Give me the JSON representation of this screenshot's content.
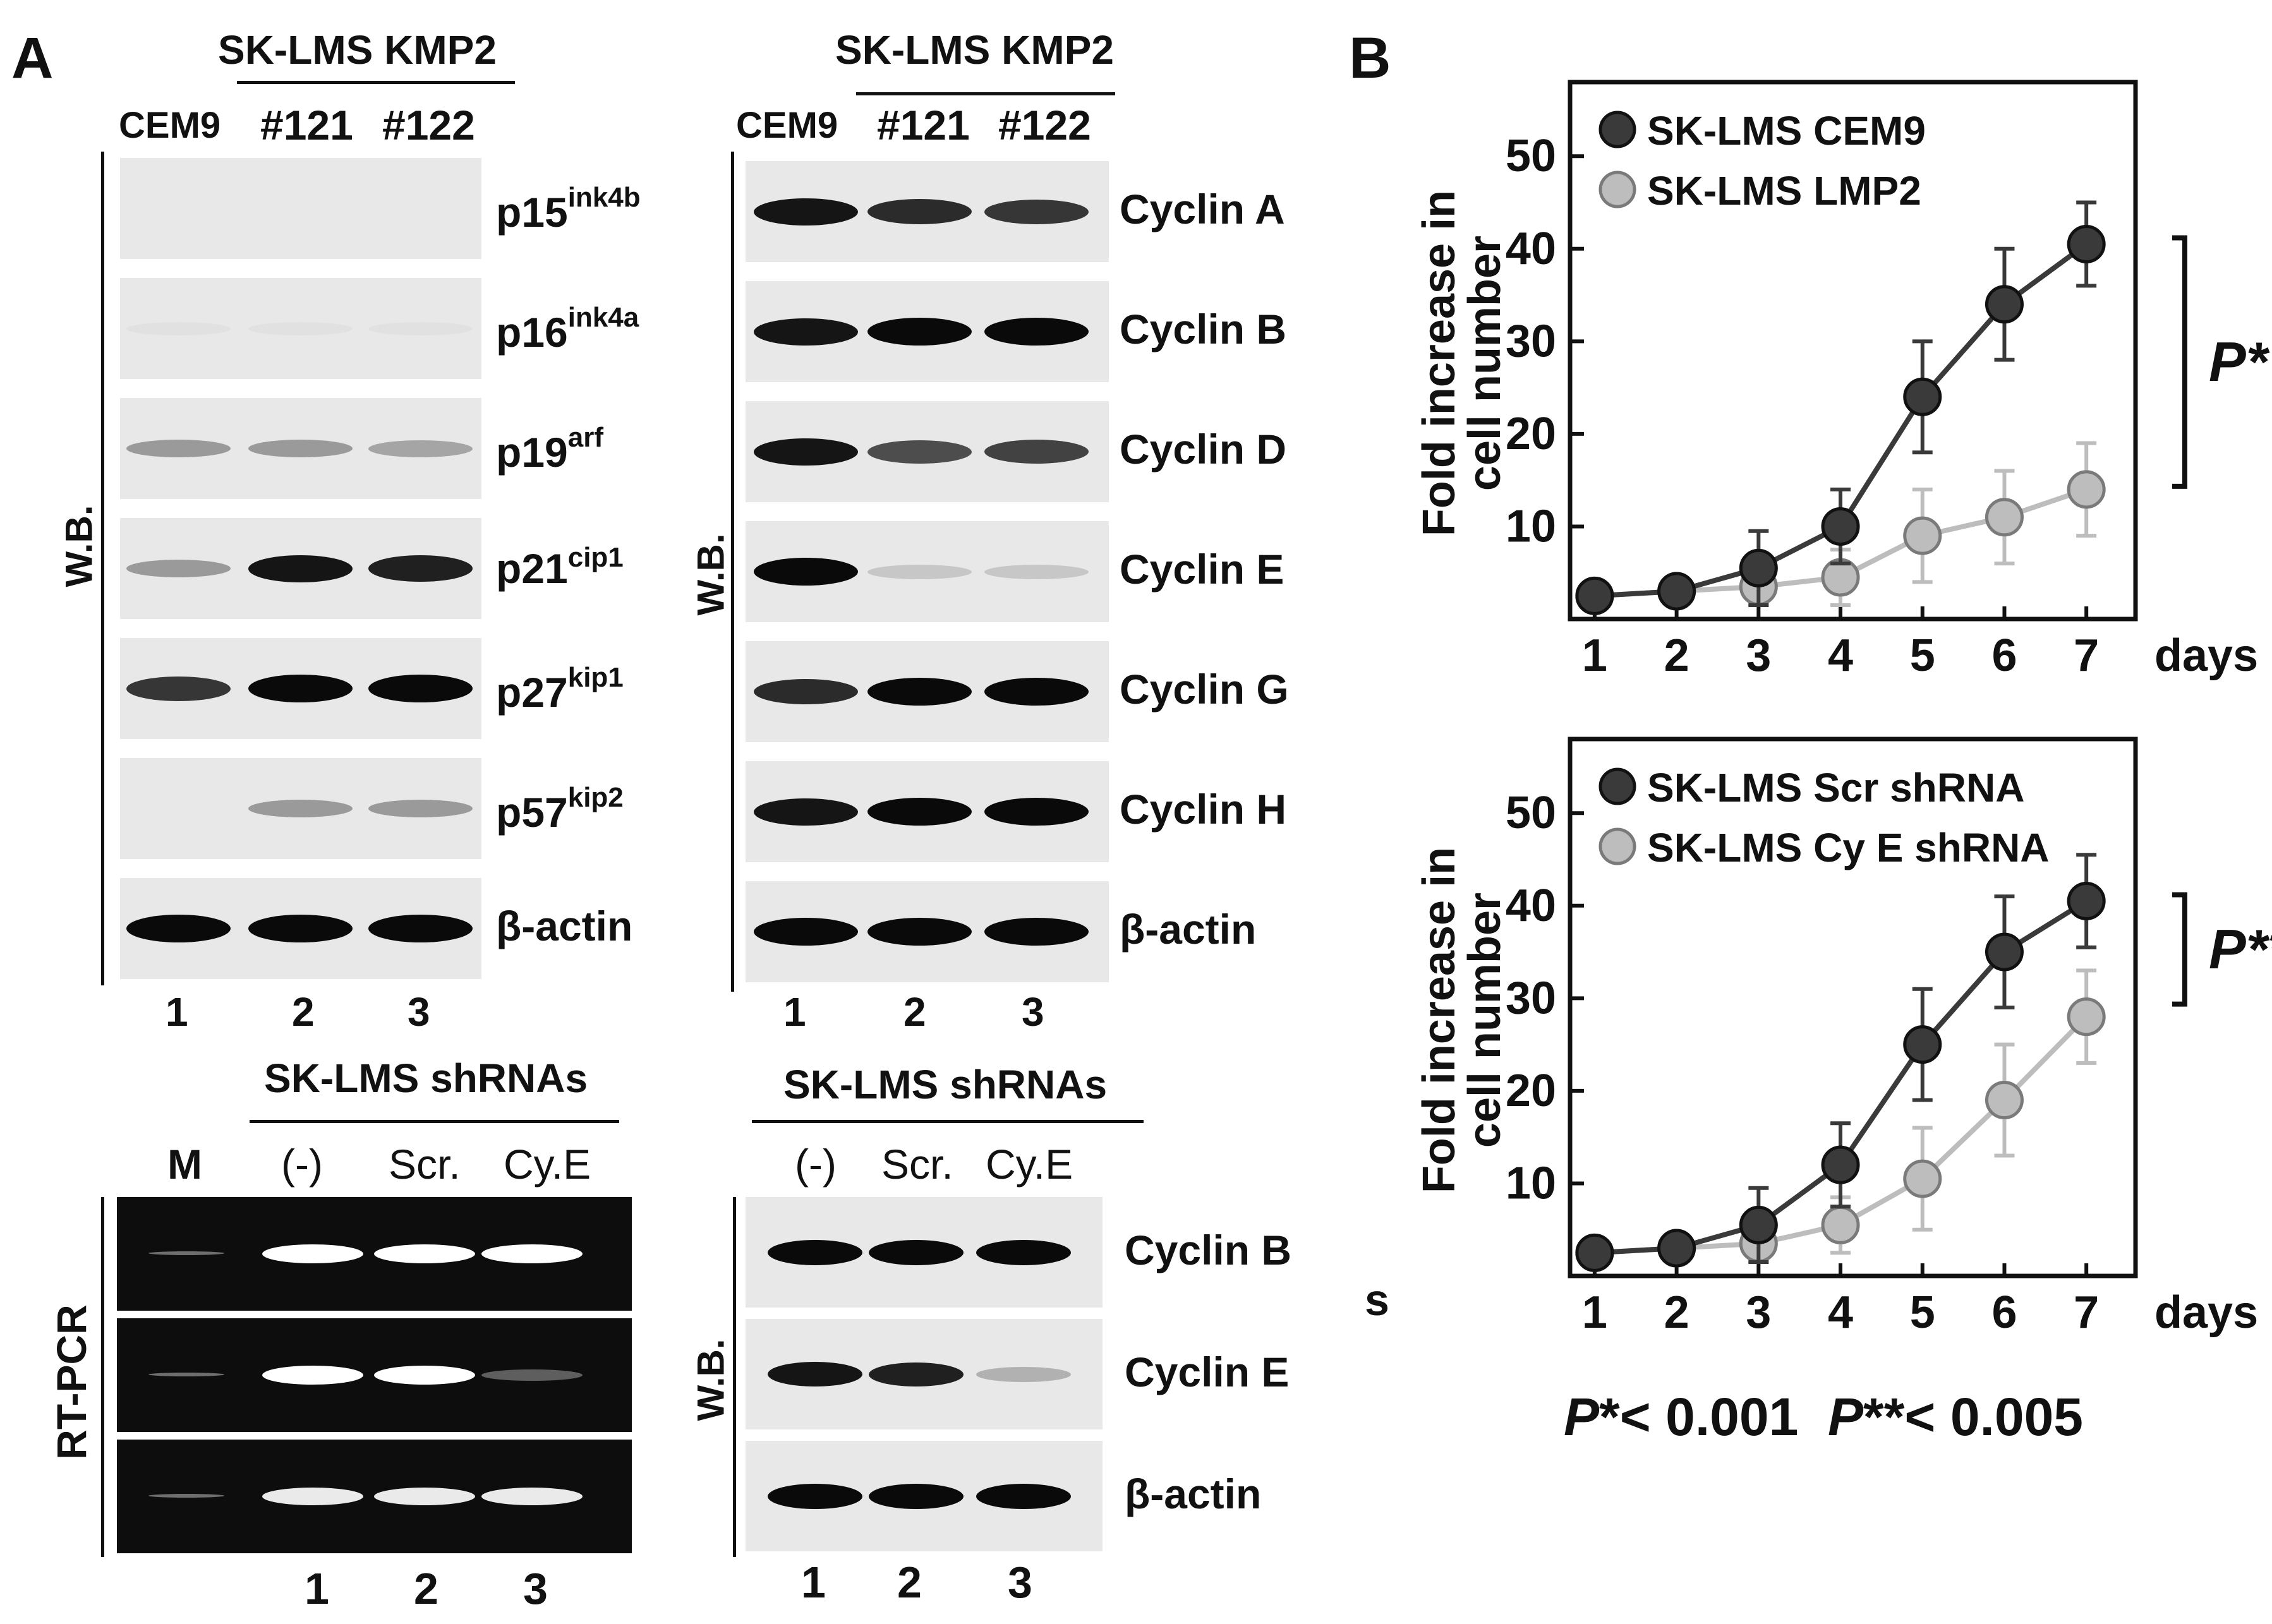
{
  "panel_a": {
    "letter": "A",
    "left_blot": {
      "group_header": "SK-LMS KMP2",
      "lanes": [
        "CEM9",
        "#121",
        "#122"
      ],
      "side_label": "W.B.",
      "rows": [
        {
          "base": "p15",
          "sup": "ink4b",
          "intensity": [
            0.0,
            0.0,
            0.0
          ]
        },
        {
          "base": "p16",
          "sup": "ink4a",
          "intensity": [
            0.03,
            0.03,
            0.03
          ]
        },
        {
          "base": "p19",
          "sup": "arf",
          "intensity": [
            0.35,
            0.35,
            0.3
          ]
        },
        {
          "base": "p21",
          "sup": "cip1",
          "intensity": [
            0.35,
            0.95,
            0.9
          ]
        },
        {
          "base": "p27",
          "sup": "kip1",
          "intensity": [
            0.8,
            1.0,
            1.0
          ]
        },
        {
          "base": "p57",
          "sup": "kip2",
          "intensity": [
            0.0,
            0.35,
            0.35
          ]
        },
        {
          "base": "β-actin",
          "sup": "",
          "intensity": [
            1.0,
            1.0,
            1.0
          ]
        }
      ],
      "lane_numbers": [
        "1",
        "2",
        "3"
      ]
    },
    "right_blot": {
      "group_header": "SK-LMS KMP2",
      "lanes": [
        "CEM9",
        "#121",
        "#122"
      ],
      "side_label": "W.B.",
      "rows": [
        {
          "label": "Cyclin A",
          "intensity": [
            0.95,
            0.85,
            0.8
          ]
        },
        {
          "label": "Cyclin B",
          "intensity": [
            0.95,
            1.0,
            1.0
          ]
        },
        {
          "label": "Cyclin D",
          "intensity": [
            0.95,
            0.7,
            0.75
          ]
        },
        {
          "label": "Cyclin E",
          "intensity": [
            1.0,
            0.15,
            0.15
          ]
        },
        {
          "label": "Cyclin G",
          "intensity": [
            0.85,
            1.0,
            1.0
          ]
        },
        {
          "label": "Cyclin H",
          "intensity": [
            0.95,
            1.0,
            1.0
          ]
        },
        {
          "label": "β-actin",
          "intensity": [
            1.0,
            1.0,
            1.0
          ]
        }
      ],
      "lane_numbers": [
        "1",
        "2",
        "3"
      ]
    },
    "rtpcr": {
      "group_header": "SK-LMS shRNAs",
      "marker": "M",
      "lanes": [
        "(-)",
        "Scr.",
        "Cy.E"
      ],
      "side_label": "RT-PCR",
      "rows": [
        {
          "intensity": [
            1.0,
            1.0,
            1.0
          ]
        },
        {
          "intensity": [
            1.0,
            1.0,
            0.25
          ]
        },
        {
          "intensity": [
            0.9,
            0.9,
            0.9
          ]
        }
      ],
      "lane_numbers": [
        "1",
        "2",
        "3"
      ]
    },
    "shrna_blot": {
      "group_header": "SK-LMS shRNAs",
      "lanes": [
        "(-)",
        "Scr.",
        "Cy.E"
      ],
      "side_label": "W.B.",
      "rows": [
        {
          "label": "Cyclin B",
          "intensity": [
            1.0,
            1.0,
            1.0
          ]
        },
        {
          "label": "Cyclin E",
          "intensity": [
            0.95,
            0.9,
            0.25
          ]
        },
        {
          "label": "β-actin",
          "intensity": [
            1.0,
            1.0,
            1.0
          ]
        }
      ],
      "lane_numbers": [
        "1",
        "2",
        "3"
      ]
    }
  },
  "panel_b": {
    "letter": "B",
    "stray_mark": "s",
    "footnote_p1": "P",
    "footnote_p1_rest": "*< 0.001",
    "footnote_p2": "P",
    "footnote_p2_rest": "**< 0.005"
  },
  "chart_data": [
    {
      "type": "line",
      "ylabel": "Fold increase in cell number",
      "ylabel_line1": "Fold increase in",
      "ylabel_line2": "cell number",
      "xlabel": "days",
      "x": [
        1,
        2,
        3,
        4,
        5,
        6,
        7
      ],
      "yticks": [
        10,
        20,
        30,
        40,
        50
      ],
      "ylim": [
        0,
        58
      ],
      "xlim": [
        0.7,
        7.6
      ],
      "series": [
        {
          "name": "SK-LMS CEM9",
          "color": "#3a3a3a",
          "values": [
            2.5,
            3,
            5.5,
            10,
            24,
            34,
            40.5
          ],
          "err": [
            0,
            0,
            4,
            4,
            6,
            6,
            4.5
          ]
        },
        {
          "name": "SK-LMS LMP2",
          "color": "#bdbdbd",
          "values": [
            2.5,
            3,
            3.5,
            4.5,
            9,
            11,
            14
          ],
          "err": [
            0,
            0,
            2,
            3,
            5,
            5,
            5
          ]
        }
      ],
      "significance": "P*"
    },
    {
      "type": "line",
      "ylabel": "Fold increase in cell number",
      "ylabel_line1": "Fold increase in",
      "ylabel_line2": "cell number",
      "xlabel": "days",
      "x": [
        1,
        2,
        3,
        4,
        5,
        6,
        7
      ],
      "yticks": [
        10,
        20,
        30,
        40,
        50
      ],
      "ylim": [
        0,
        58
      ],
      "xlim": [
        0.7,
        7.6
      ],
      "series": [
        {
          "name": "SK-LMS Scr shRNA",
          "color": "#3a3a3a",
          "values": [
            2.5,
            3,
            5.5,
            12,
            25,
            35,
            40.5
          ],
          "err": [
            0,
            0,
            4,
            4.5,
            6,
            6,
            5
          ]
        },
        {
          "name": "SK-LMS Cy E shRNA",
          "color": "#bdbdbd",
          "values": [
            2.5,
            3,
            3.5,
            5.5,
            10.5,
            19,
            28
          ],
          "err": [
            0,
            0,
            2,
            3,
            5.5,
            6,
            5
          ]
        }
      ],
      "significance": "P**"
    }
  ]
}
